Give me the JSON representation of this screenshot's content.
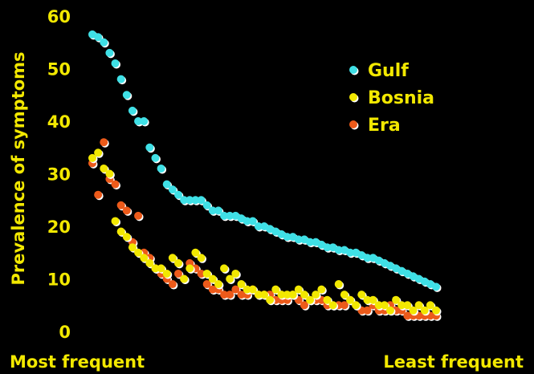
{
  "chart_data": {
    "type": "scatter",
    "title": "",
    "ylabel": "Prevalence of symptoms",
    "xlabel_start": "Most frequent",
    "xlabel_end": "Least frequent",
    "ylim": [
      0,
      60
    ],
    "yticks": [
      "0",
      "10",
      "20",
      "30",
      "40",
      "50",
      "60"
    ],
    "grid": false,
    "legend_position": "top-right",
    "background": "#000000",
    "text_color": "#f2e800",
    "series": [
      {
        "name": "Gulf",
        "color": "#3fe0e6",
        "x": [
          1,
          2,
          3,
          4,
          5,
          6,
          7,
          8,
          9,
          10,
          11,
          12,
          13,
          14,
          15,
          16,
          17,
          18,
          19,
          20,
          21,
          22,
          23,
          24,
          25,
          26,
          27,
          28,
          29,
          30,
          31,
          32,
          33,
          34,
          35,
          36,
          37,
          38,
          39,
          40,
          41,
          42,
          43,
          44,
          45,
          46,
          47,
          48,
          49,
          50,
          51,
          52,
          53,
          54,
          55,
          56,
          57,
          58,
          59,
          60,
          61
        ],
        "values": [
          56.5,
          56,
          55,
          53,
          51,
          48,
          45,
          42,
          40,
          40,
          35,
          33,
          31,
          28,
          27,
          26,
          25,
          25,
          25,
          25,
          24,
          23,
          23,
          22,
          22,
          22,
          21.5,
          21,
          21,
          20,
          20,
          19.5,
          19,
          18.5,
          18,
          18,
          17.5,
          17.5,
          17,
          17,
          16.5,
          16,
          16,
          15.5,
          15.5,
          15,
          15,
          14.5,
          14,
          14,
          13.5,
          13,
          12.5,
          12,
          11.5,
          11,
          10.5,
          10,
          9.5,
          9,
          8.5
        ]
      },
      {
        "name": "Bosnia",
        "color": "#f2e800",
        "x": [
          1,
          2,
          3,
          4,
          5,
          6,
          7,
          8,
          9,
          10,
          11,
          12,
          13,
          14,
          15,
          16,
          17,
          18,
          19,
          20,
          21,
          22,
          23,
          24,
          25,
          26,
          27,
          28,
          29,
          30,
          31,
          32,
          33,
          34,
          35,
          36,
          37,
          38,
          39,
          40,
          41,
          42,
          43,
          44,
          45,
          46,
          47,
          48,
          49,
          50,
          51,
          52,
          53,
          54,
          55,
          56,
          57,
          58,
          59,
          60,
          61
        ],
        "values": [
          33,
          34,
          31,
          30,
          21,
          19,
          18,
          16,
          15,
          14,
          13,
          12,
          12,
          11,
          14,
          13,
          10,
          12,
          15,
          14,
          11,
          10,
          9,
          12,
          10,
          11,
          9,
          8,
          8,
          7,
          7,
          6,
          8,
          7,
          7,
          7,
          8,
          7,
          6,
          7,
          8,
          6,
          5,
          9,
          7,
          6,
          5,
          7,
          6,
          6,
          5,
          5,
          4,
          6,
          5,
          5,
          4,
          5,
          4,
          5,
          4
        ]
      },
      {
        "name": "Era",
        "color": "#ec5a1a",
        "x": [
          1,
          2,
          3,
          4,
          5,
          6,
          7,
          8,
          9,
          10,
          11,
          12,
          13,
          14,
          15,
          16,
          17,
          18,
          19,
          20,
          21,
          22,
          23,
          24,
          25,
          26,
          27,
          28,
          29,
          30,
          31,
          32,
          33,
          34,
          35,
          36,
          37,
          38,
          39,
          40,
          41,
          42,
          43,
          44,
          45,
          46,
          47,
          48,
          49,
          50,
          51,
          52,
          53,
          54,
          55,
          56,
          57,
          58,
          59,
          60,
          61
        ],
        "values": [
          32,
          26,
          36,
          29,
          28,
          24,
          23,
          17,
          22,
          15,
          14,
          12,
          11,
          10,
          9,
          11,
          10,
          13,
          12,
          11,
          9,
          8,
          8,
          7,
          7,
          8,
          7,
          7,
          8,
          7,
          7,
          7,
          6,
          6,
          6,
          7,
          6,
          5,
          6,
          6,
          6,
          5,
          5,
          5,
          5,
          6,
          5,
          4,
          4,
          5,
          4,
          4,
          5,
          4,
          4,
          3,
          3,
          3,
          3,
          3,
          3
        ]
      }
    ]
  }
}
